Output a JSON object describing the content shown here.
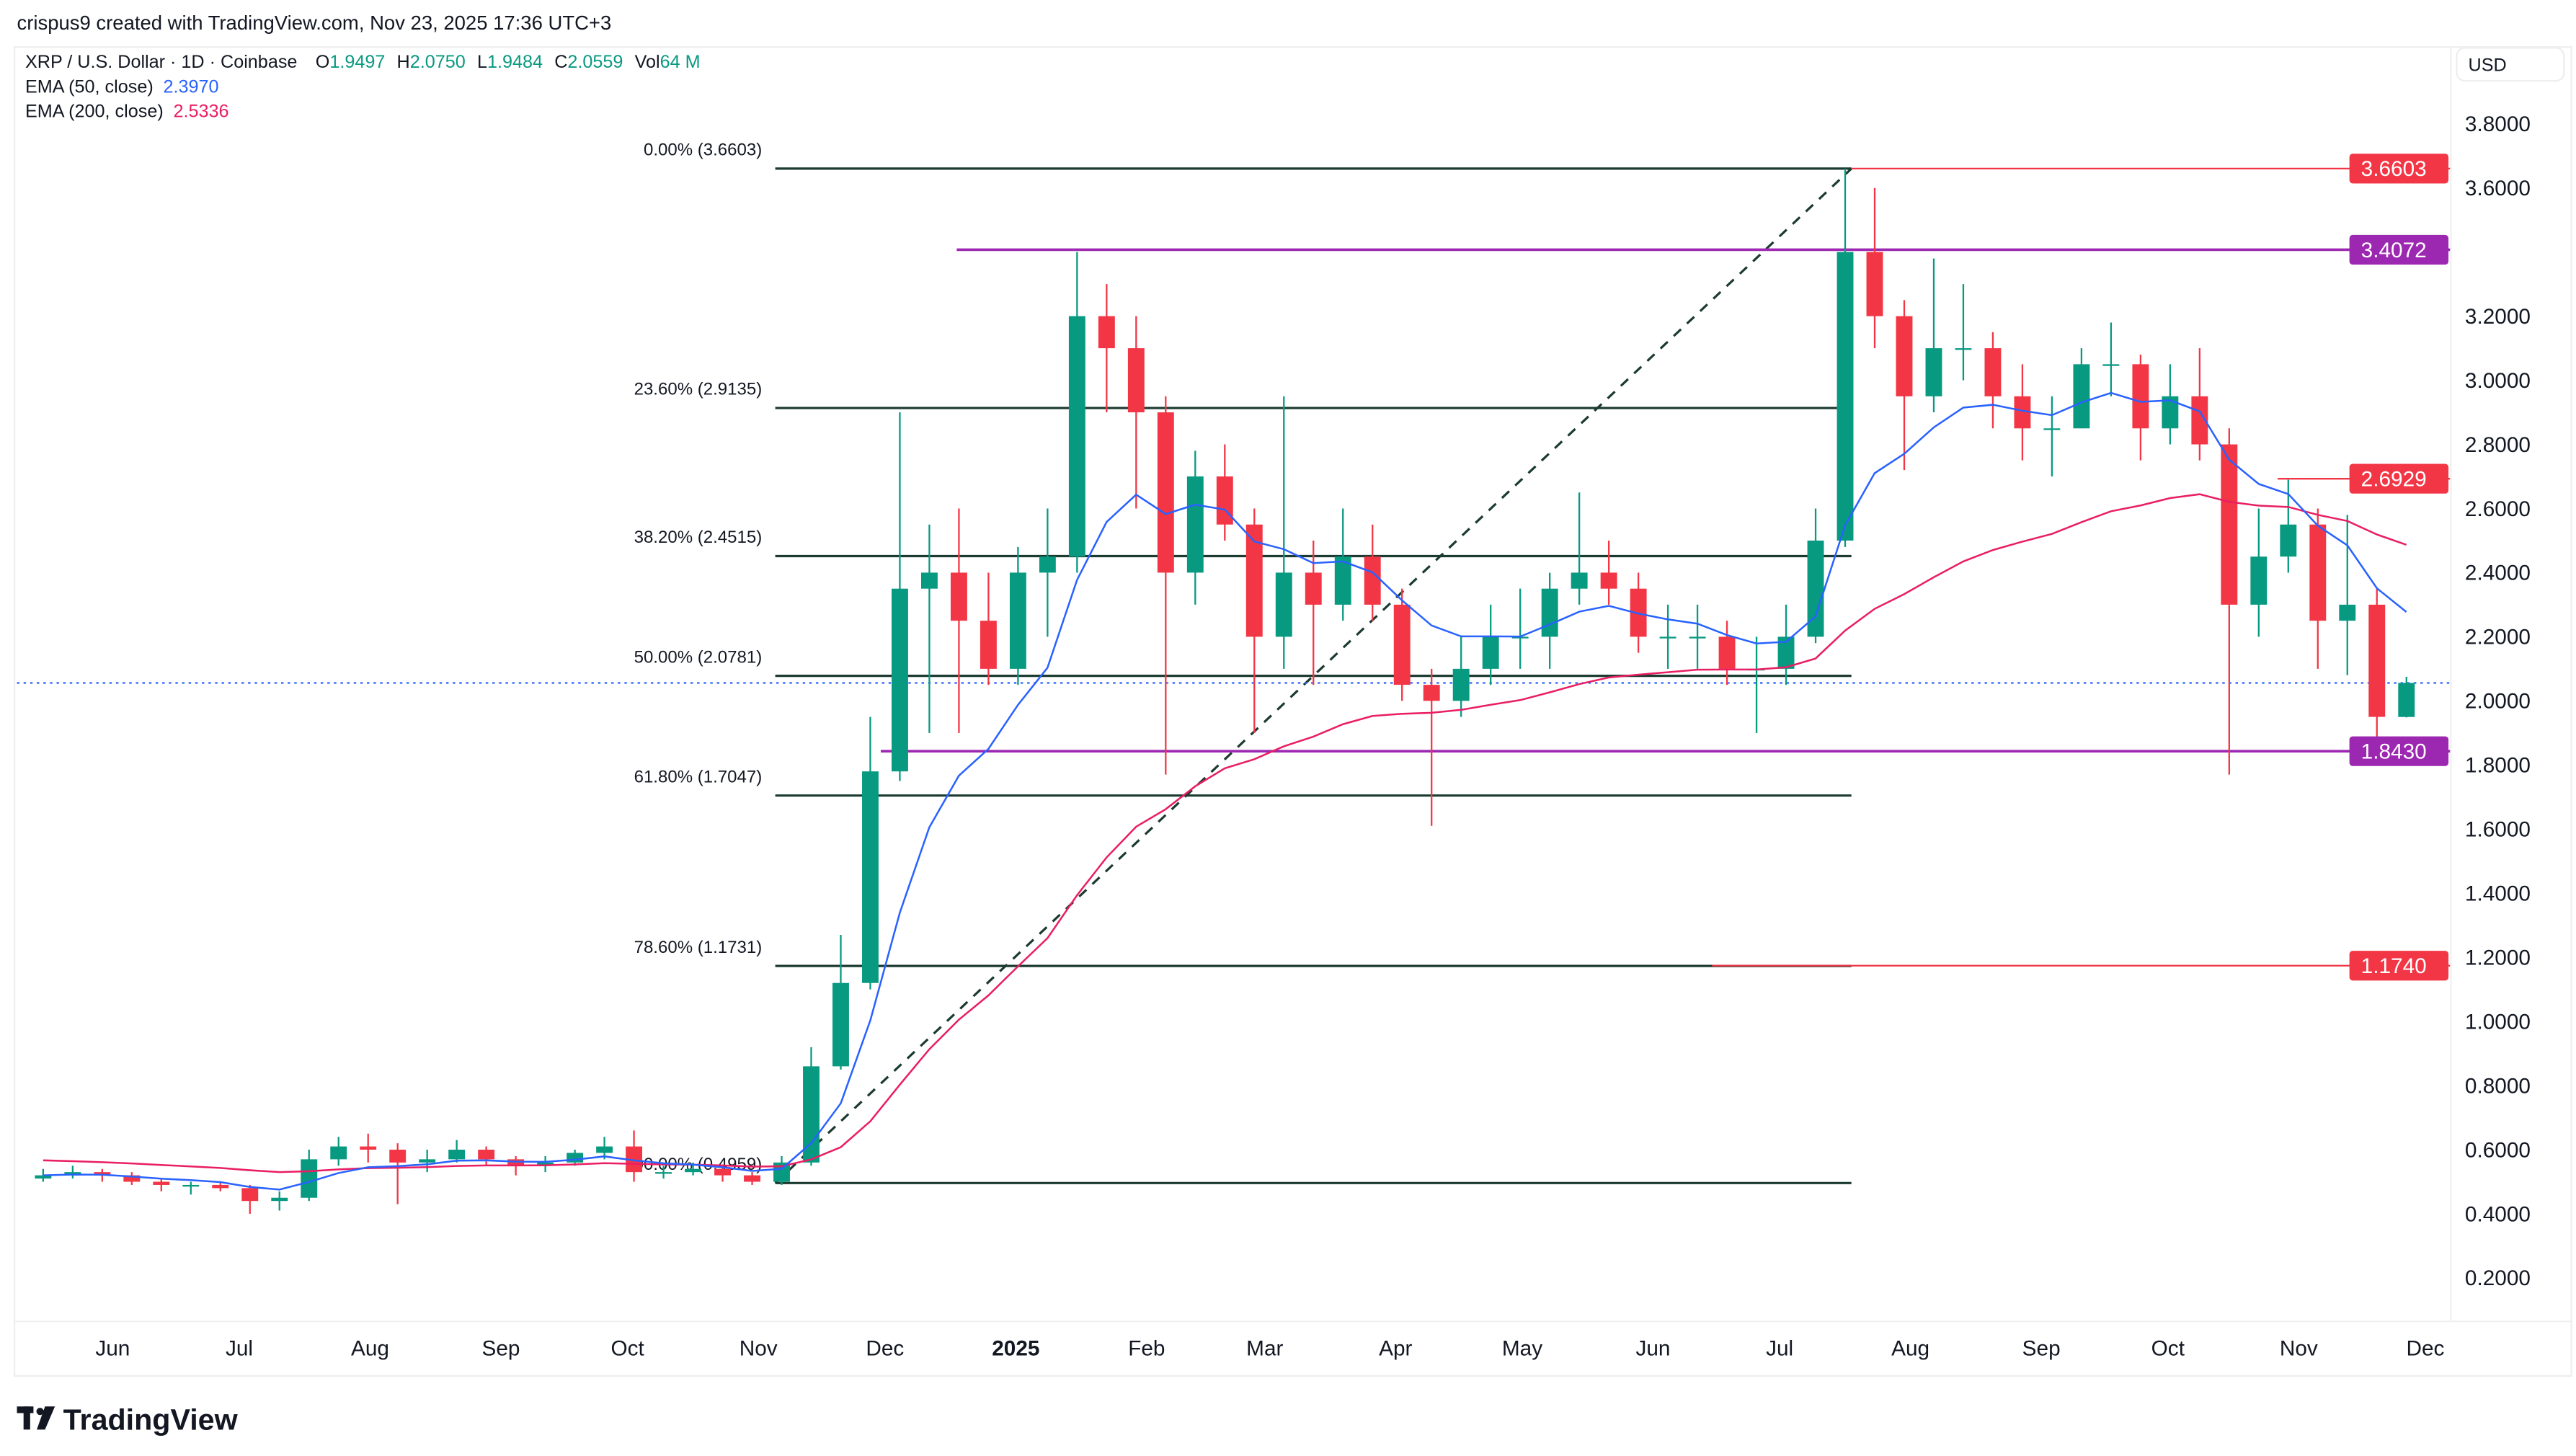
{
  "caption": "crispus9 created with TradingView.com, Nov 23, 2025 17:36 UTC+3",
  "legend": {
    "symbol": "XRP / U.S. Dollar · 1D · Coinbase",
    "o_label": "O",
    "o": "1.9497",
    "h_label": "H",
    "h": "2.0750",
    "l_label": "L",
    "l": "1.9484",
    "c_label": "C",
    "c": "2.0559",
    "vol_label": "Vol",
    "vol": "64 M",
    "ema50_label": "EMA (50, close)",
    "ema50": "2.3970",
    "ema200_label": "EMA (200, close)",
    "ema200": "2.5336"
  },
  "currency_button": "USD",
  "logo": "TradingView",
  "colors": {
    "up": "#089981",
    "down": "#F23645",
    "ema50": "#2962FF",
    "ema200": "#E91E63",
    "purple": "#9C27B0",
    "fib": "#1B3A30",
    "red_line": "#F23645"
  },
  "chart_data": {
    "type": "candlestick",
    "interval_shown": "weekly approximation of daily candles",
    "ylim": [
      0.1,
      3.9
    ],
    "yticks": [
      "3.8000",
      "3.6000",
      "3.2000",
      "3.0000",
      "2.8000",
      "2.6000",
      "2.4000",
      "2.2000",
      "2.0000",
      "1.8000",
      "1.6000",
      "1.4000",
      "1.2000",
      "1.0000",
      "0.8000",
      "0.6000",
      "0.4000",
      "0.2000"
    ],
    "xticks": [
      {
        "label": "Jun",
        "date": "2024-06-01"
      },
      {
        "label": "Jul",
        "date": "2024-07-01"
      },
      {
        "label": "Aug",
        "date": "2024-08-01"
      },
      {
        "label": "Sep",
        "date": "2024-09-01"
      },
      {
        "label": "Oct",
        "date": "2024-10-01"
      },
      {
        "label": "Nov",
        "date": "2024-11-01"
      },
      {
        "label": "Dec",
        "date": "2024-12-01"
      },
      {
        "label": "2025",
        "date": "2025-01-01",
        "bold": true
      },
      {
        "label": "Feb",
        "date": "2025-02-01"
      },
      {
        "label": "Mar",
        "date": "2025-03-01"
      },
      {
        "label": "Apr",
        "date": "2025-04-01"
      },
      {
        "label": "May",
        "date": "2025-05-01"
      },
      {
        "label": "Jun",
        "date": "2025-06-01"
      },
      {
        "label": "Jul",
        "date": "2025-07-01"
      },
      {
        "label": "Aug",
        "date": "2025-08-01"
      },
      {
        "label": "Sep",
        "date": "2025-09-01"
      },
      {
        "label": "Oct",
        "date": "2025-10-01"
      },
      {
        "label": "Nov",
        "date": "2025-11-01"
      },
      {
        "label": "Dec",
        "date": "2025-12-01"
      }
    ],
    "candles": [
      [
        "2024-05-12",
        0.51,
        0.54,
        0.5,
        0.52
      ],
      [
        "2024-05-19",
        0.52,
        0.55,
        0.51,
        0.53
      ],
      [
        "2024-05-26",
        0.53,
        0.54,
        0.5,
        0.52
      ],
      [
        "2024-06-02",
        0.52,
        0.53,
        0.49,
        0.5
      ],
      [
        "2024-06-09",
        0.5,
        0.51,
        0.47,
        0.49
      ],
      [
        "2024-06-16",
        0.49,
        0.5,
        0.46,
        0.49
      ],
      [
        "2024-06-23",
        0.49,
        0.5,
        0.47,
        0.48
      ],
      [
        "2024-06-30",
        0.48,
        0.49,
        0.4,
        0.44
      ],
      [
        "2024-07-07",
        0.44,
        0.47,
        0.41,
        0.45
      ],
      [
        "2024-07-14",
        0.45,
        0.6,
        0.44,
        0.57
      ],
      [
        "2024-07-21",
        0.57,
        0.64,
        0.55,
        0.61
      ],
      [
        "2024-07-28",
        0.61,
        0.65,
        0.56,
        0.6
      ],
      [
        "2024-08-04",
        0.6,
        0.62,
        0.43,
        0.56
      ],
      [
        "2024-08-11",
        0.56,
        0.6,
        0.53,
        0.57
      ],
      [
        "2024-08-18",
        0.57,
        0.63,
        0.56,
        0.6
      ],
      [
        "2024-08-25",
        0.6,
        0.61,
        0.55,
        0.57
      ],
      [
        "2024-09-01",
        0.57,
        0.58,
        0.52,
        0.55
      ],
      [
        "2024-09-08",
        0.55,
        0.58,
        0.53,
        0.56
      ],
      [
        "2024-09-15",
        0.56,
        0.6,
        0.55,
        0.59
      ],
      [
        "2024-09-22",
        0.59,
        0.64,
        0.57,
        0.61
      ],
      [
        "2024-09-29",
        0.61,
        0.66,
        0.5,
        0.53
      ],
      [
        "2024-10-06",
        0.53,
        0.55,
        0.51,
        0.53
      ],
      [
        "2024-10-13",
        0.53,
        0.56,
        0.52,
        0.54
      ],
      [
        "2024-10-20",
        0.54,
        0.55,
        0.5,
        0.52
      ],
      [
        "2024-10-27",
        0.52,
        0.53,
        0.49,
        0.5
      ],
      [
        "2024-11-03",
        0.5,
        0.58,
        0.49,
        0.56
      ],
      [
        "2024-11-10",
        0.56,
        0.92,
        0.55,
        0.86
      ],
      [
        "2024-11-17",
        0.86,
        1.27,
        0.85,
        1.12
      ],
      [
        "2024-11-24",
        1.12,
        1.95,
        1.1,
        1.78
      ],
      [
        "2024-12-01",
        1.78,
        2.9,
        1.75,
        2.35
      ],
      [
        "2024-12-08",
        2.35,
        2.55,
        1.9,
        2.4
      ],
      [
        "2024-12-15",
        2.4,
        2.6,
        1.9,
        2.25
      ],
      [
        "2024-12-22",
        2.25,
        2.4,
        2.05,
        2.1
      ],
      [
        "2024-12-29",
        2.1,
        2.48,
        2.05,
        2.4
      ],
      [
        "2025-01-05",
        2.4,
        2.6,
        2.2,
        2.45
      ],
      [
        "2025-01-12",
        2.45,
        3.4,
        2.4,
        3.2
      ],
      [
        "2025-01-19",
        3.2,
        3.3,
        2.9,
        3.1
      ],
      [
        "2025-01-26",
        3.1,
        3.2,
        2.6,
        2.9
      ],
      [
        "2025-02-02",
        2.9,
        2.95,
        1.77,
        2.4
      ],
      [
        "2025-02-09",
        2.4,
        2.78,
        2.3,
        2.7
      ],
      [
        "2025-02-16",
        2.7,
        2.8,
        2.5,
        2.55
      ],
      [
        "2025-02-23",
        2.55,
        2.6,
        1.9,
        2.2
      ],
      [
        "2025-03-02",
        2.2,
        2.95,
        2.1,
        2.4
      ],
      [
        "2025-03-09",
        2.4,
        2.5,
        2.05,
        2.3
      ],
      [
        "2025-03-16",
        2.3,
        2.6,
        2.25,
        2.45
      ],
      [
        "2025-03-23",
        2.45,
        2.55,
        2.25,
        2.3
      ],
      [
        "2025-03-30",
        2.3,
        2.35,
        2.0,
        2.05
      ],
      [
        "2025-04-06",
        2.05,
        2.1,
        1.61,
        2.0
      ],
      [
        "2025-04-13",
        2.0,
        2.2,
        1.95,
        2.1
      ],
      [
        "2025-04-20",
        2.1,
        2.3,
        2.05,
        2.2
      ],
      [
        "2025-04-27",
        2.2,
        2.35,
        2.1,
        2.2
      ],
      [
        "2025-05-04",
        2.2,
        2.4,
        2.1,
        2.35
      ],
      [
        "2025-05-11",
        2.35,
        2.65,
        2.3,
        2.4
      ],
      [
        "2025-05-18",
        2.4,
        2.5,
        2.3,
        2.35
      ],
      [
        "2025-05-25",
        2.35,
        2.4,
        2.15,
        2.2
      ],
      [
        "2025-06-01",
        2.2,
        2.3,
        2.1,
        2.2
      ],
      [
        "2025-06-08",
        2.2,
        2.3,
        2.1,
        2.2
      ],
      [
        "2025-06-15",
        2.2,
        2.25,
        2.05,
        2.1
      ],
      [
        "2025-06-22",
        2.1,
        2.2,
        1.9,
        2.1
      ],
      [
        "2025-06-29",
        2.1,
        2.3,
        2.05,
        2.2
      ],
      [
        "2025-07-06",
        2.2,
        2.6,
        2.18,
        2.5
      ],
      [
        "2025-07-13",
        2.5,
        3.66,
        2.48,
        3.4
      ],
      [
        "2025-07-20",
        3.4,
        3.6,
        3.1,
        3.2
      ],
      [
        "2025-07-27",
        3.2,
        3.25,
        2.72,
        2.95
      ],
      [
        "2025-08-03",
        2.95,
        3.38,
        2.9,
        3.1
      ],
      [
        "2025-08-10",
        3.1,
        3.3,
        3.0,
        3.1
      ],
      [
        "2025-08-17",
        3.1,
        3.15,
        2.85,
        2.95
      ],
      [
        "2025-08-24",
        2.95,
        3.05,
        2.75,
        2.85
      ],
      [
        "2025-08-31",
        2.85,
        2.95,
        2.7,
        2.85
      ],
      [
        "2025-09-07",
        2.85,
        3.1,
        2.85,
        3.05
      ],
      [
        "2025-09-14",
        3.05,
        3.18,
        2.95,
        3.05
      ],
      [
        "2025-09-21",
        3.05,
        3.08,
        2.75,
        2.85
      ],
      [
        "2025-09-28",
        2.85,
        3.05,
        2.8,
        2.95
      ],
      [
        "2025-10-05",
        2.95,
        3.1,
        2.75,
        2.8
      ],
      [
        "2025-10-12",
        2.8,
        2.85,
        1.77,
        2.3
      ],
      [
        "2025-10-19",
        2.3,
        2.6,
        2.2,
        2.45
      ],
      [
        "2025-10-26",
        2.45,
        2.69,
        2.4,
        2.55
      ],
      [
        "2025-11-02",
        2.55,
        2.6,
        2.1,
        2.25
      ],
      [
        "2025-11-09",
        2.25,
        2.58,
        2.08,
        2.3
      ],
      [
        "2025-11-16",
        2.3,
        2.35,
        1.82,
        1.95
      ],
      [
        "2025-11-23",
        1.9497,
        2.075,
        1.9484,
        2.0559
      ]
    ],
    "indicators": [
      {
        "name": "EMA (50, close)",
        "last": 2.397
      },
      {
        "name": "EMA (200, close)",
        "last": 2.5336
      }
    ],
    "fibonacci": {
      "from_date": "2024-11-05",
      "to_date": "2025-07-18",
      "end_date": "2025-07-18",
      "levels": [
        {
          "label": "0.00% (3.6603)",
          "price": 3.6603
        },
        {
          "label": "23.60% (2.9135)",
          "price": 2.9135
        },
        {
          "label": "38.20% (2.4515)",
          "price": 2.4515
        },
        {
          "label": "50.00% (2.0781)",
          "price": 2.0781
        },
        {
          "label": "61.80% (1.7047)",
          "price": 1.7047
        },
        {
          "label": "78.60% (1.1731)",
          "price": 1.1731
        },
        {
          "label": "100.00% (0.4959)",
          "price": 0.4959
        }
      ]
    },
    "horizontal_lines": [
      {
        "price": 3.6603,
        "label": "3.6603",
        "color": "#F23645",
        "from": "2025-07-18"
      },
      {
        "price": 3.4072,
        "label": "3.4072",
        "color": "#9C27B0",
        "from": "2024-12-18"
      },
      {
        "price": 2.6929,
        "label": "2.6929",
        "color": "#F23645",
        "from": "2025-10-27"
      },
      {
        "price": 1.843,
        "label": "1.8430",
        "color": "#9C27B0",
        "from": "2024-11-30"
      },
      {
        "price": 1.174,
        "label": "1.1740",
        "color": "#F23645",
        "from": "2025-06-15"
      }
    ],
    "last_price": 2.0559
  }
}
